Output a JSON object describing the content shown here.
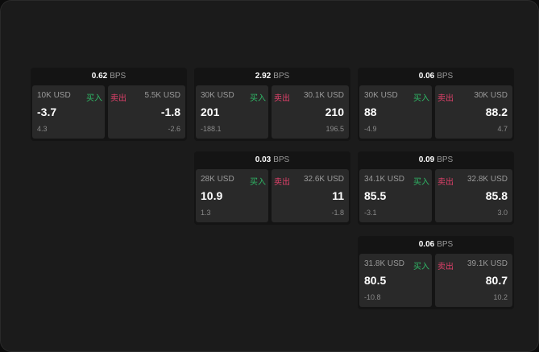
{
  "unit": "BPS",
  "buy_label": "买入",
  "sell_label": "卖出",
  "colors": {
    "buy": "#2fb866",
    "sell": "#e0406a"
  },
  "groups": [
    {
      "bps": "0.62",
      "bid": {
        "size": "10K USD",
        "price": "-3.7",
        "change": "4.3"
      },
      "ask": {
        "size": "5.5K USD",
        "price": "-1.8",
        "change": "-2.6"
      }
    },
    {
      "bps": "2.92",
      "bid": {
        "size": "30K USD",
        "price": "201",
        "change": "-188.1"
      },
      "ask": {
        "size": "30.1K USD",
        "price": "210",
        "change": "196.5"
      }
    },
    {
      "bps": "0.06",
      "bid": {
        "size": "30K USD",
        "price": "88",
        "change": "-4.9"
      },
      "ask": {
        "size": "30K USD",
        "price": "88.2",
        "change": "4.7"
      }
    },
    {
      "bps": "0.03",
      "bid": {
        "size": "28K USD",
        "price": "10.9",
        "change": "1.3"
      },
      "ask": {
        "size": "32.6K USD",
        "price": "11",
        "change": "-1.8"
      }
    },
    {
      "bps": "0.09",
      "bid": {
        "size": "34.1K USD",
        "price": "85.5",
        "change": "-3.1"
      },
      "ask": {
        "size": "32.8K USD",
        "price": "85.8",
        "change": "3.0"
      }
    },
    {
      "bps": "0.06",
      "bid": {
        "size": "31.8K USD",
        "price": "80.5",
        "change": "-10.8"
      },
      "ask": {
        "size": "39.1K USD",
        "price": "80.7",
        "change": "10.2"
      }
    }
  ]
}
